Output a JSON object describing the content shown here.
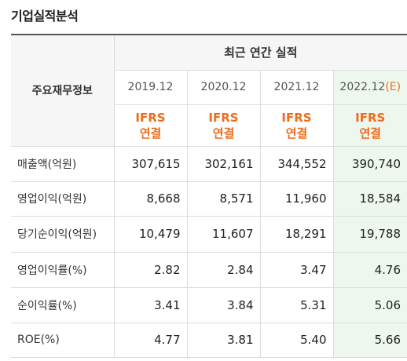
{
  "title": "기업실적분석",
  "header": {
    "row_header_label": "주요재무정보",
    "group_label": "최근 연간 실적",
    "years": [
      "2019.12",
      "2020.12",
      "2021.12",
      "2022.12"
    ],
    "estimate_mark": "(E)",
    "standard_line1": "IFRS",
    "standard_line2": "연결"
  },
  "rows": [
    {
      "label": "매출액(억원)",
      "values": [
        "307,615",
        "302,161",
        "344,552",
        "390,740"
      ]
    },
    {
      "label": "영업이익(억원)",
      "values": [
        "8,668",
        "8,571",
        "11,960",
        "18,584"
      ]
    },
    {
      "label": "당기순이익(억원)",
      "values": [
        "10,479",
        "11,607",
        "18,291",
        "19,788"
      ]
    },
    {
      "label": "영업이익률(%)",
      "values": [
        "2.82",
        "2.84",
        "3.47",
        "4.76"
      ]
    },
    {
      "label": "순이익률(%)",
      "values": [
        "3.41",
        "3.84",
        "5.31",
        "5.06"
      ]
    },
    {
      "label": "ROE(%)",
      "values": [
        "4.77",
        "3.81",
        "5.40",
        "5.66"
      ]
    }
  ],
  "colors": {
    "accent_orange": "#ef6c1a",
    "estimate_bg": "#eef7ee",
    "header_bg": "#f6f6f6"
  }
}
